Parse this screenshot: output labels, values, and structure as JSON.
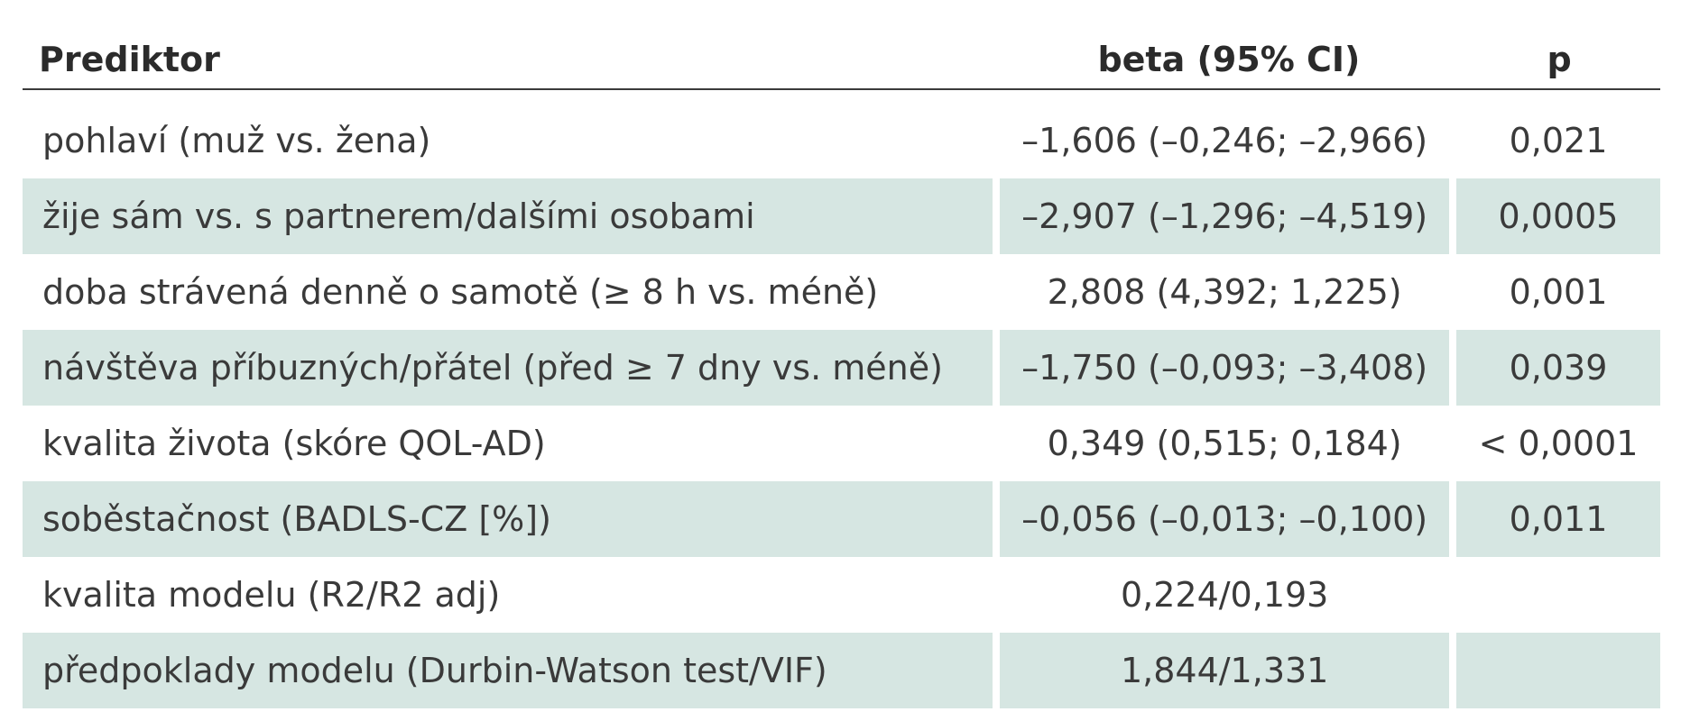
{
  "table": {
    "headers": {
      "predictor": "Prediktor",
      "beta": "beta (95% CI)",
      "p": "p"
    },
    "rows": [
      {
        "predictor": "pohlaví (muž vs. žena)",
        "beta": "–1,606 (–0,246; –2,966)",
        "p": "0,021",
        "shaded": false
      },
      {
        "predictor": "žije sám vs. s partnerem/dalšími osobami",
        "beta": "–2,907 (–1,296; –4,519)",
        "p": "0,0005",
        "shaded": true
      },
      {
        "predictor": "doba strávená denně o samotě (≥ 8 h vs. méně)",
        "beta": "2,808 (4,392; 1,225)",
        "p": "0,001",
        "shaded": false
      },
      {
        "predictor": "návštěva příbuzných/přátel (před ≥ 7 dny vs. méně)",
        "beta": "–1,750 (–0,093; –3,408)",
        "p": "0,039",
        "shaded": true
      },
      {
        "predictor": "kvalita života (skóre QOL-AD)",
        "beta": "0,349 (0,515; 0,184)",
        "p": "< 0,0001",
        "shaded": false
      },
      {
        "predictor": "soběstačnost (BADLS-CZ [%])",
        "beta": "–0,056 (–0,013; –0,100)",
        "p": "0,011",
        "shaded": true
      },
      {
        "predictor": "kvalita modelu (R2/R2 adj)",
        "beta": "0,224/0,193",
        "p": "",
        "shaded": false
      },
      {
        "predictor": "předpoklady modelu (Durbin-Watson test/VIF)",
        "beta": "1,844/1,331",
        "p": "",
        "shaded": true
      }
    ],
    "shade_color": "#d6e6e2"
  }
}
